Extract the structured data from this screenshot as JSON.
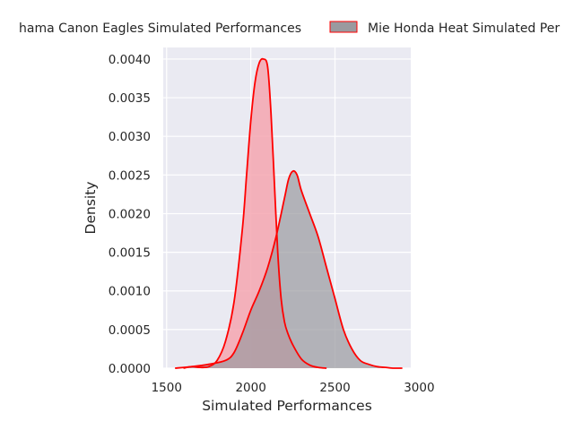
{
  "chart_data": {
    "type": "area",
    "xlabel": "Simulated Performances",
    "ylabel": "Density",
    "xlim": [
      1480,
      2950
    ],
    "ylim": [
      0,
      0.00415
    ],
    "x_ticks": [
      1500,
      2000,
      2500,
      3000
    ],
    "x_tick_labels": [
      "1500",
      "2000",
      "2500",
      "3000"
    ],
    "y_ticks": [
      0,
      0.0005,
      0.001,
      0.0015,
      0.002,
      0.0025,
      0.003,
      0.0035,
      0.004
    ],
    "y_tick_labels": [
      "0.0000",
      "0.0005",
      "0.0010",
      "0.0015",
      "0.0020",
      "0.0025",
      "0.0030",
      "0.0035",
      "0.0040"
    ],
    "grid": true,
    "legend_position": "top, above plot",
    "colors": {
      "background": "#eaeaf2",
      "grid": "#ffffff",
      "line": "#ff0000",
      "series_0_fill": "#f4a6b0",
      "series_1_fill": "#9a9a9f"
    },
    "series": [
      {
        "name": "Yokohama Canon Eagles Simulated Performances",
        "legend_visible_text": "hama Canon Eagles Simulated Performances",
        "x": [
          1600,
          1650,
          1700,
          1750,
          1800,
          1850,
          1900,
          1950,
          1975,
          2000,
          2025,
          2050,
          2075,
          2100,
          2120,
          2140,
          2160,
          2180,
          2200,
          2220,
          2250,
          2300,
          2350,
          2400,
          2450
        ],
        "y": [
          0.0,
          2e-05,
          1e-05,
          2e-05,
          0.0001,
          0.00035,
          0.00085,
          0.0018,
          0.0025,
          0.0032,
          0.0037,
          0.00395,
          0.004,
          0.0039,
          0.0033,
          0.0024,
          0.0015,
          0.0009,
          0.0006,
          0.00045,
          0.0003,
          0.00012,
          4e-05,
          1e-05,
          0.0
        ]
      },
      {
        "name": "Mie Honda Heat Simulated Performances",
        "legend_visible_text": "Mie Honda Heat Simulated Per",
        "x": [
          1550,
          1650,
          1750,
          1850,
          1900,
          1950,
          2000,
          2050,
          2100,
          2150,
          2200,
          2225,
          2250,
          2275,
          2300,
          2350,
          2400,
          2450,
          2500,
          2550,
          2600,
          2650,
          2700,
          2750,
          2800,
          2850,
          2900
        ],
        "y": [
          0.0,
          2e-05,
          5e-05,
          0.0001,
          0.0002,
          0.00045,
          0.00075,
          0.001,
          0.0013,
          0.0017,
          0.0022,
          0.00245,
          0.00255,
          0.0025,
          0.0023,
          0.002,
          0.0017,
          0.0013,
          0.0009,
          0.0005,
          0.00025,
          0.0001,
          5e-05,
          2e-05,
          1e-05,
          0.0,
          0.0
        ]
      }
    ]
  }
}
